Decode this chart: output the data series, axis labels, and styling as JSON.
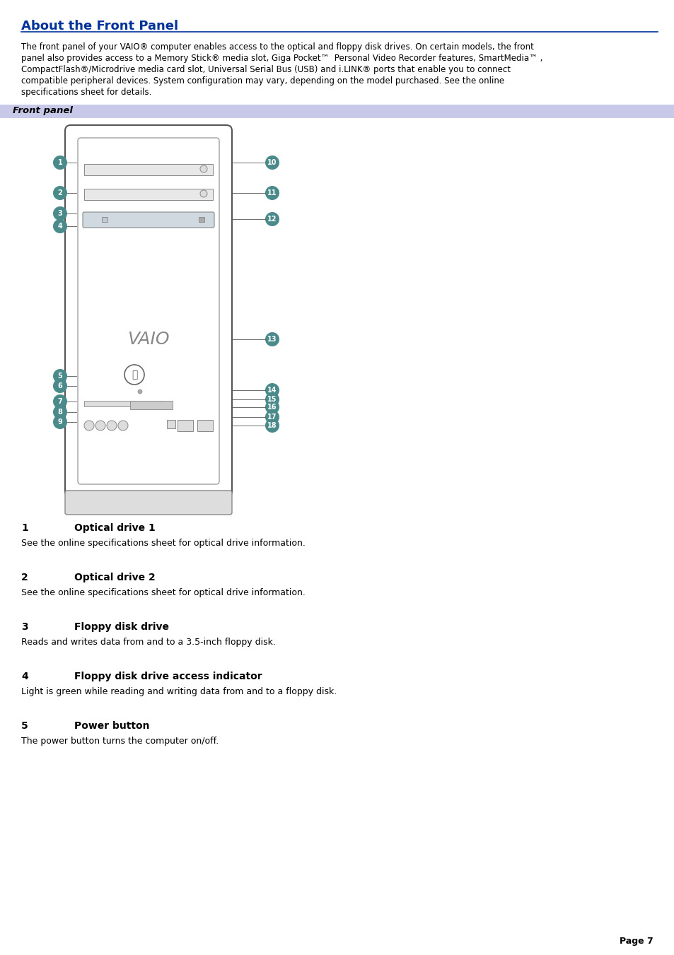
{
  "title": "About the Front Panel",
  "title_color": "#003399",
  "header_line_color": "#003399",
  "bg_color": "#ffffff",
  "intro_text": "The front panel of your VAIO® computer enables access to the optical and floppy disk drives. On certain models, the front panel also provides access to a Memory Stick® media slot, Giga Pocket™ Personal Video Recorder features, SmartMedia™,\nCompactFlash®/Microdrive media card slot, Universal Serial Bus (USB) and i.LINK® ports that enable you to connect\ncompatible peripheral devices. System configuration may vary, depending on the model purchased. See the online\nspecifications sheet for details.",
  "section_label": "Front panel",
  "section_bg": "#c8c8e8",
  "section_text_color": "#000000",
  "items": [
    {
      "num": "1",
      "label": "Optical drive 1",
      "desc": "See the online specifications sheet for optical drive information."
    },
    {
      "num": "2",
      "label": "Optical drive 2",
      "desc": "See the online specifications sheet for optical drive information."
    },
    {
      "num": "3",
      "label": "Floppy disk drive",
      "desc": "Reads and writes data from and to a 3.5-inch floppy disk."
    },
    {
      "num": "4",
      "label": "Floppy disk drive access indicator",
      "desc": "Light is green while reading and writing data from and to a floppy disk."
    },
    {
      "num": "5",
      "label": "Power button",
      "desc": "The power button turns the computer on/off."
    }
  ],
  "page_num": "Page 7",
  "bullet_color": "#4a8a8a",
  "diagram_image_placeholder": true
}
